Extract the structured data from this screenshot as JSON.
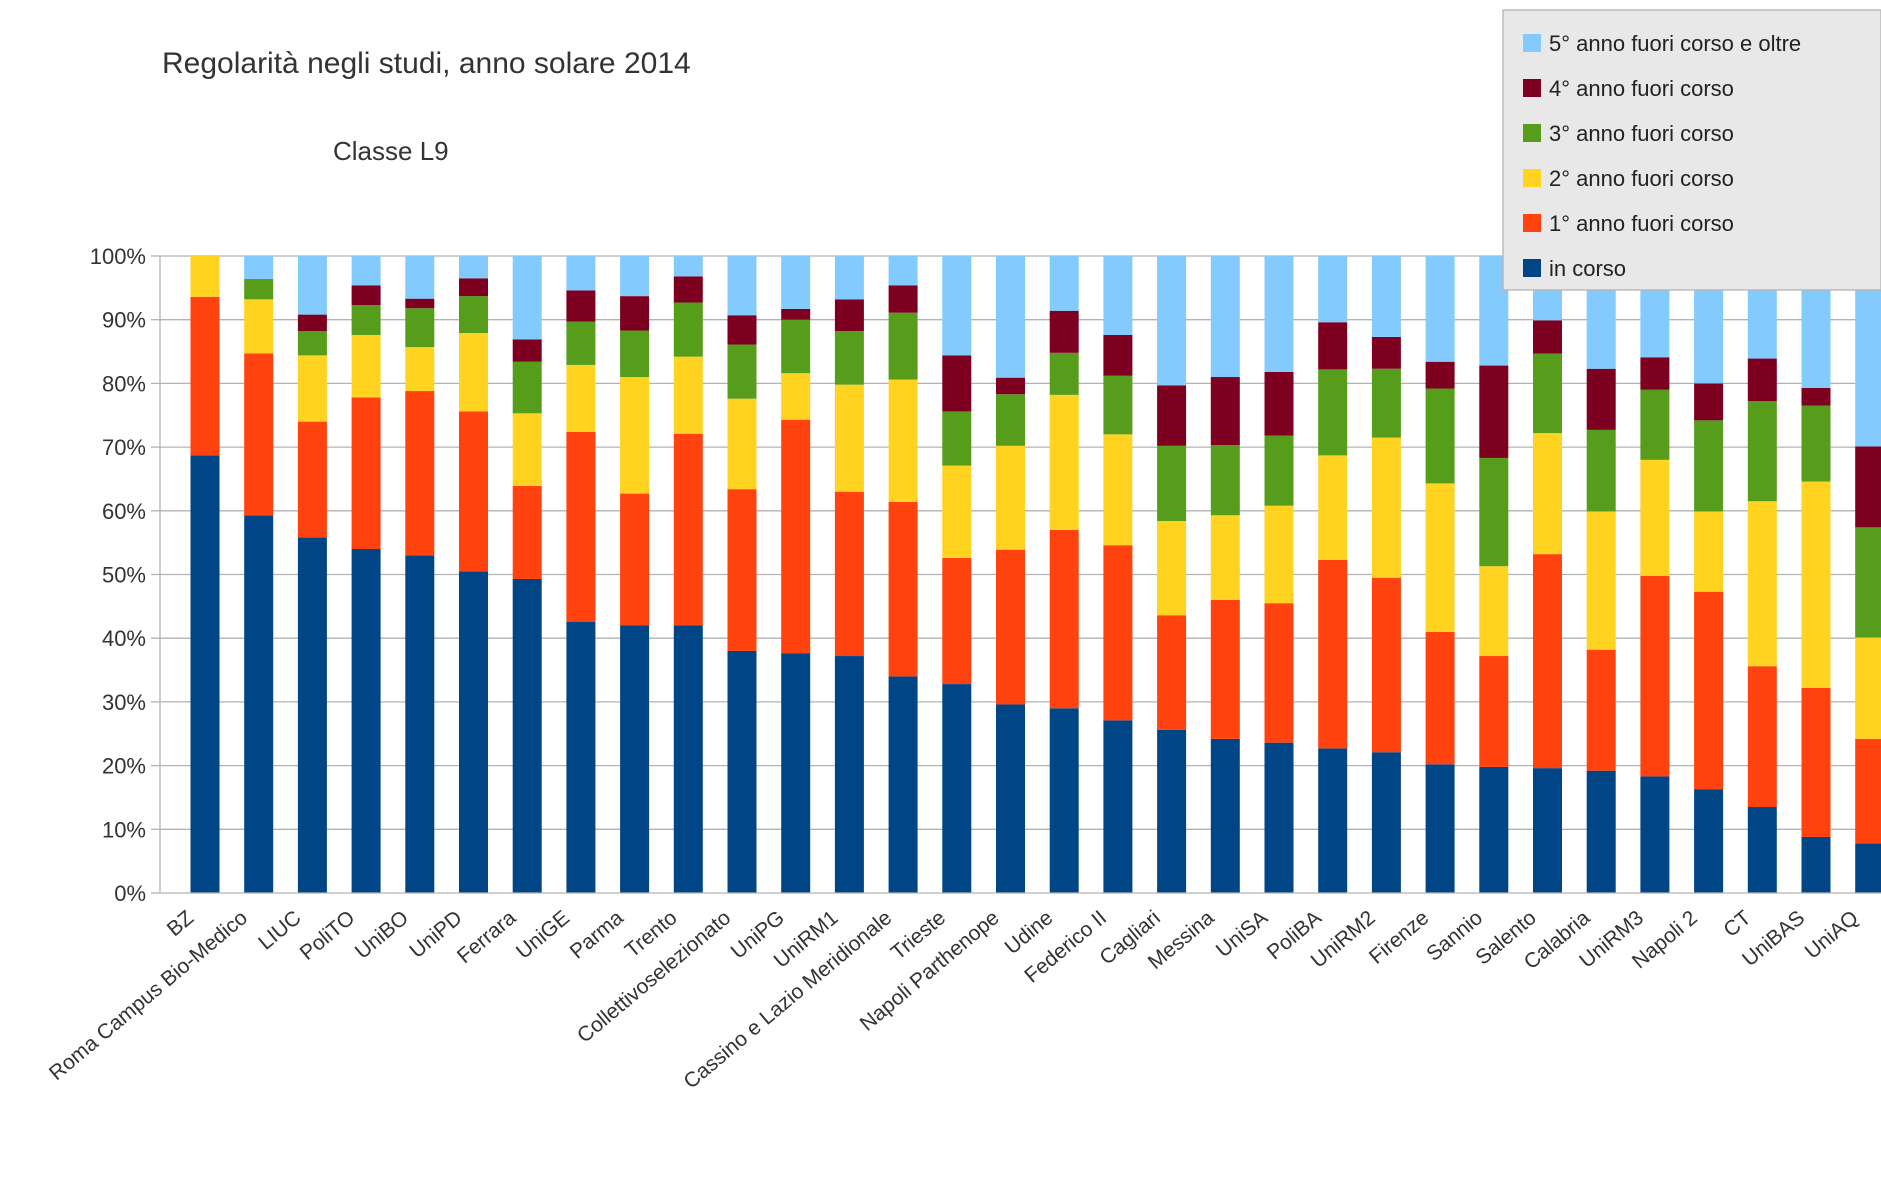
{
  "chart_data": {
    "type": "bar",
    "stacked": true,
    "percent": true,
    "title": "Regolarità negli studi, anno solare 2014",
    "subtitle": "Classe L9",
    "ylim": [
      0,
      100
    ],
    "yticks": [
      "0%",
      "10%",
      "20%",
      "30%",
      "40%",
      "50%",
      "60%",
      "70%",
      "80%",
      "90%",
      "100%"
    ],
    "grid": true,
    "legend_position": "top-right",
    "categories": [
      "BZ",
      "Roma Campus Bio-Medico",
      "LIUC",
      "PoliTO",
      "UniBO",
      "UniPD",
      "Ferrara",
      "UniGE",
      "Parma",
      "Trento",
      "Collettivoselezionato",
      "UniPG",
      "UniRM1",
      "Cassino e Lazio Meridionale",
      "Trieste",
      "Napoli Parthenope",
      "Udine",
      "Federico II",
      "Cagliari",
      "Messina",
      "UniSA",
      "PoliBA",
      "UniRM2",
      "Firenze",
      "Sannio",
      "Salento",
      "Calabria",
      "UniRM3",
      "Napoli 2",
      "CT",
      "UniBAS",
      "UniAQ"
    ],
    "series": [
      {
        "name": "in corso",
        "color": "#004586",
        "values": [
          68.7,
          59.3,
          55.8,
          54.0,
          53.0,
          50.5,
          49.3,
          42.6,
          42.0,
          42.0,
          38.0,
          37.6,
          37.2,
          34.0,
          32.8,
          29.6,
          29.0,
          27.1,
          25.6,
          24.2,
          23.6,
          22.7,
          22.1,
          20.2,
          19.8,
          19.6,
          19.2,
          18.3,
          16.3,
          13.5,
          8.8,
          7.8
        ]
      },
      {
        "name": "1° anno fuori corso",
        "color": "#ff420e",
        "values": [
          24.9,
          25.4,
          18.2,
          23.8,
          25.8,
          25.1,
          14.6,
          29.8,
          20.7,
          30.1,
          25.4,
          36.7,
          25.8,
          27.4,
          19.8,
          24.3,
          28.0,
          27.5,
          18.0,
          21.8,
          21.9,
          29.6,
          27.4,
          20.8,
          17.4,
          33.6,
          19.0,
          31.5,
          31.0,
          22.1,
          23.4,
          16.4
        ]
      },
      {
        "name": "2° anno fuori corso",
        "color": "#ffd320",
        "values": [
          6.4,
          8.5,
          10.4,
          9.8,
          6.9,
          12.3,
          11.4,
          10.5,
          18.3,
          12.1,
          14.2,
          7.3,
          16.8,
          19.2,
          14.5,
          16.3,
          21.2,
          17.4,
          14.8,
          13.3,
          15.3,
          16.4,
          22.0,
          23.3,
          14.1,
          19.0,
          21.7,
          18.2,
          12.6,
          25.9,
          32.4,
          15.9
        ]
      },
      {
        "name": "3° anno fuori corso",
        "color": "#579d1c",
        "values": [
          0,
          3.2,
          3.8,
          4.7,
          6.1,
          5.8,
          8.1,
          6.8,
          7.3,
          8.5,
          8.5,
          8.4,
          8.4,
          10.5,
          8.5,
          8.1,
          6.6,
          9.2,
          11.8,
          11.0,
          11.0,
          13.5,
          10.8,
          14.9,
          17.0,
          12.5,
          12.8,
          11.0,
          14.3,
          15.7,
          11.9,
          17.3
        ]
      },
      {
        "name": "4° anno fuori corso",
        "color": "#7e0021",
        "values": [
          0,
          0,
          2.6,
          3.1,
          1.5,
          2.8,
          3.5,
          4.9,
          5.4,
          4.1,
          4.6,
          1.7,
          5.0,
          4.3,
          8.8,
          2.6,
          6.6,
          6.4,
          9.5,
          10.7,
          10.0,
          7.4,
          5.0,
          4.2,
          14.5,
          5.2,
          9.6,
          5.1,
          5.8,
          6.7,
          2.8,
          12.7
        ]
      },
      {
        "name": "5° anno fuori corso e oltre",
        "color": "#83caff",
        "values": [
          0,
          3.6,
          9.2,
          4.6,
          6.7,
          3.5,
          13.1,
          5.4,
          6.3,
          3.2,
          9.3,
          8.3,
          6.8,
          4.6,
          15.6,
          19.1,
          8.6,
          12.4,
          20.3,
          19.0,
          18.2,
          10.4,
          12.7,
          16.6,
          17.2,
          10.1,
          17.7,
          15.9,
          20.0,
          16.1,
          20.7,
          29.9
        ]
      }
    ]
  }
}
